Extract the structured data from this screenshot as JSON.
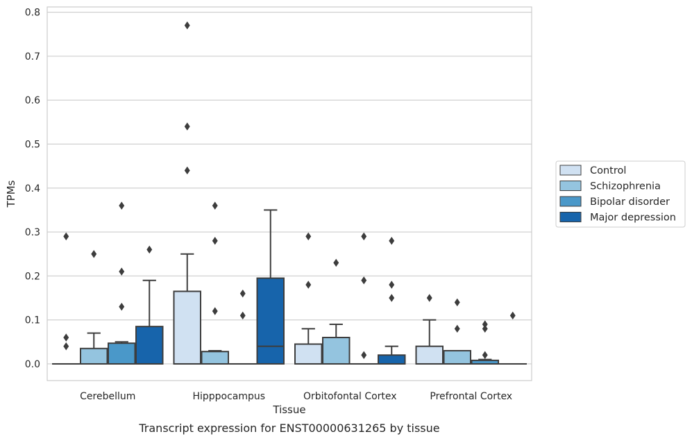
{
  "chart_data": {
    "type": "box",
    "title": "",
    "xlabel": "Tissue",
    "ylabel": "TPMs",
    "caption": "Transcript expression for ENST00000631265 by tissue",
    "ylim": [
      -0.038,
      0.812
    ],
    "yticks": [
      "0.0",
      "0.1",
      "0.2",
      "0.3",
      "0.4",
      "0.5",
      "0.6",
      "0.7",
      "0.8"
    ],
    "grid": "horizontal",
    "legend_position": "right",
    "categories": [
      "Cerebellum",
      "Hipppocampus",
      "Orbitofontal Cortex",
      "Prefrontal Cortex"
    ],
    "series": [
      {
        "name": "Control",
        "color": "#d0e1f2",
        "boxes": [
          {
            "q1": 0,
            "median": 0,
            "q3": 0,
            "whisker_low": 0,
            "whisker_high": 0,
            "outliers": [
              0.29,
              0.06,
              0.04
            ]
          },
          {
            "q1": 0,
            "median": 0,
            "q3": 0.165,
            "whisker_low": 0,
            "whisker_high": 0.25,
            "outliers": [
              0.77,
              0.54,
              0.44
            ]
          },
          {
            "q1": 0,
            "median": 0,
            "q3": 0.045,
            "whisker_low": 0,
            "whisker_high": 0.08,
            "outliers": [
              0.29,
              0.18
            ]
          },
          {
            "q1": 0,
            "median": 0,
            "q3": 0.04,
            "whisker_low": 0,
            "whisker_high": 0.1,
            "outliers": [
              0.15
            ]
          }
        ]
      },
      {
        "name": "Schizophrenia",
        "color": "#94c4df",
        "boxes": [
          {
            "q1": 0,
            "median": 0,
            "q3": 0.035,
            "whisker_low": 0,
            "whisker_high": 0.07,
            "outliers": [
              0.25
            ]
          },
          {
            "q1": 0,
            "median": 0,
            "q3": 0.028,
            "whisker_low": 0,
            "whisker_high": 0.03,
            "outliers": [
              0.36,
              0.28,
              0.12
            ]
          },
          {
            "q1": 0,
            "median": 0,
            "q3": 0.06,
            "whisker_low": 0,
            "whisker_high": 0.09,
            "outliers": [
              0.23
            ]
          },
          {
            "q1": 0,
            "median": 0,
            "q3": 0.03,
            "whisker_low": 0,
            "whisker_high": 0.03,
            "outliers": [
              0.14,
              0.08
            ]
          }
        ]
      },
      {
        "name": "Bipolar disorder",
        "color": "#4a98c9",
        "boxes": [
          {
            "q1": 0,
            "median": 0,
            "q3": 0.047,
            "whisker_low": 0,
            "whisker_high": 0.05,
            "outliers": [
              0.36,
              0.21,
              0.13
            ]
          },
          {
            "q1": 0,
            "median": 0,
            "q3": 0,
            "whisker_low": 0,
            "whisker_high": 0,
            "outliers": [
              0.16,
              0.11
            ]
          },
          {
            "q1": 0,
            "median": 0,
            "q3": 0,
            "whisker_low": 0,
            "whisker_high": 0,
            "outliers": [
              0.29,
              0.19,
              0.02
            ]
          },
          {
            "q1": 0,
            "median": 0,
            "q3": 0.008,
            "whisker_low": 0,
            "whisker_high": 0.01,
            "outliers": [
              0.09,
              0.08,
              0.02
            ]
          }
        ]
      },
      {
        "name": "Major depression",
        "color": "#1764ab",
        "boxes": [
          {
            "q1": 0,
            "median": 0,
            "q3": 0.085,
            "whisker_low": 0,
            "whisker_high": 0.19,
            "outliers": [
              0.26
            ]
          },
          {
            "q1": 0,
            "median": 0.04,
            "q3": 0.195,
            "whisker_low": 0,
            "whisker_high": 0.35,
            "outliers": []
          },
          {
            "q1": 0,
            "median": 0,
            "q3": 0.02,
            "whisker_low": 0,
            "whisker_high": 0.04,
            "outliers": [
              0.28,
              0.18,
              0.15
            ]
          },
          {
            "q1": 0,
            "median": 0,
            "q3": 0,
            "whisker_low": 0,
            "whisker_high": 0,
            "outliers": [
              0.11
            ]
          }
        ]
      }
    ]
  }
}
